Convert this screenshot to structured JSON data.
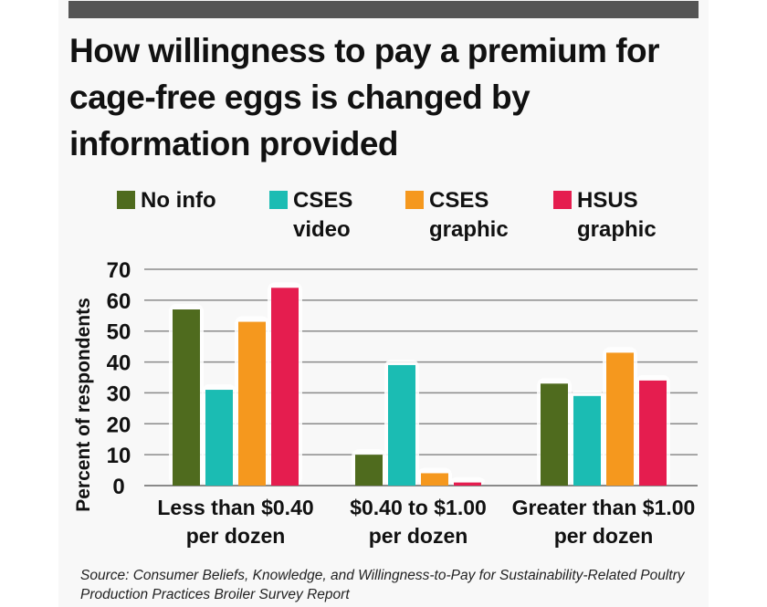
{
  "title": "How willingness to pay a premium for cage-free eggs is changed by information provided",
  "source": "Source: Consumer Beliefs, Knowledge, and Willingness-to-Pay for Sustainability-Related Poultry Production Practices Broiler Survey Report",
  "colors": {
    "background": "#f8f8f8",
    "band": "#555555",
    "gridline": "#8a8a8a",
    "no_info": "#4f6b1e",
    "cses_video": "#1bbcb3",
    "cses_graphic": "#f5981e",
    "hsus_graphic": "#e51d4f"
  },
  "chart_data": {
    "type": "bar",
    "title": "How willingness to pay a premium for cage-free eggs is changed by information provided",
    "xlabel": "",
    "ylabel": "Percent of respondents",
    "ylim": [
      0,
      70
    ],
    "yticks": [
      "0",
      "10",
      "20",
      "30",
      "40",
      "50",
      "60",
      "70"
    ],
    "grid": true,
    "legend_position": "top",
    "categories": [
      "Less than $0.40 per dozen",
      "$0.40 to $1.00 per dozen",
      "Greater than $1.00 per dozen"
    ],
    "category_labels": [
      [
        "Less than $0.40",
        "per dozen"
      ],
      [
        "$0.40 to $1.00",
        "per dozen"
      ],
      [
        "Greater than $1.00",
        "per dozen"
      ]
    ],
    "series": [
      {
        "name": "No info",
        "legend_lines": [
          "No info"
        ],
        "color": "#4f6b1e",
        "values": [
          57,
          10,
          33
        ]
      },
      {
        "name": "CSES video",
        "legend_lines": [
          "CSES",
          "video"
        ],
        "color": "#1bbcb3",
        "values": [
          31,
          39,
          29
        ]
      },
      {
        "name": "CSES graphic",
        "legend_lines": [
          "CSES",
          "graphic"
        ],
        "color": "#f5981e",
        "values": [
          53,
          4,
          43
        ]
      },
      {
        "name": "HSUS graphic",
        "legend_lines": [
          "HSUS",
          "graphic"
        ],
        "color": "#e51d4f",
        "values": [
          64,
          1,
          34
        ]
      }
    ]
  }
}
